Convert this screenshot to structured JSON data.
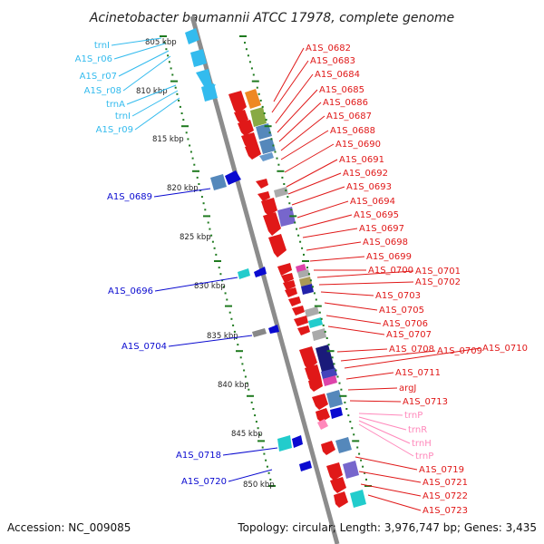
{
  "title": "Acinetobacter baumannii ATCC 17978, complete genome",
  "footer": {
    "accession": "Accession: NC_009085",
    "topology": "Topology: circular; Length: 3,976,747 bp; Genes: 3,435"
  },
  "colors": {
    "backbone": "#8c8c8c",
    "tick": "#1f7a1f",
    "cds_forward": "#e01818",
    "cds_reverse": "#0a0ad0",
    "rna": "#33bbee",
    "trna_light": "#ff88bb"
  },
  "kbp_ticks": [
    "805 kbp",
    "810 kbp",
    "815 kbp",
    "820 kbp",
    "825 kbp",
    "830 kbp",
    "835 kbp",
    "840 kbp",
    "845 kbp",
    "850 kbp"
  ],
  "left_labels": [
    {
      "text": "trnI",
      "color": "#33bbee"
    },
    {
      "text": "A1S_r06",
      "color": "#33bbee"
    },
    {
      "text": "A1S_r07",
      "color": "#33bbee"
    },
    {
      "text": "A1S_r08",
      "color": "#33bbee"
    },
    {
      "text": "trnA",
      "color": "#33bbee"
    },
    {
      "text": "trnI",
      "color": "#33bbee"
    },
    {
      "text": "A1S_r09",
      "color": "#33bbee"
    },
    {
      "text": "A1S_0689",
      "color": "#0a0ad0"
    },
    {
      "text": "A1S_0696",
      "color": "#0a0ad0"
    },
    {
      "text": "A1S_0704",
      "color": "#0a0ad0"
    },
    {
      "text": "A1S_0718",
      "color": "#0a0ad0"
    },
    {
      "text": "A1S_0720",
      "color": "#0a0ad0"
    }
  ],
  "right_labels": [
    {
      "text": "A1S_0682",
      "color": "#e01818"
    },
    {
      "text": "A1S_0683",
      "color": "#e01818"
    },
    {
      "text": "A1S_0684",
      "color": "#e01818"
    },
    {
      "text": "A1S_0685",
      "color": "#e01818"
    },
    {
      "text": "A1S_0686",
      "color": "#e01818"
    },
    {
      "text": "A1S_0687",
      "color": "#e01818"
    },
    {
      "text": "A1S_0688",
      "color": "#e01818"
    },
    {
      "text": "A1S_0690",
      "color": "#e01818"
    },
    {
      "text": "A1S_0691",
      "color": "#e01818"
    },
    {
      "text": "A1S_0692",
      "color": "#e01818"
    },
    {
      "text": "A1S_0693",
      "color": "#e01818"
    },
    {
      "text": "A1S_0694",
      "color": "#e01818"
    },
    {
      "text": "A1S_0695",
      "color": "#e01818"
    },
    {
      "text": "A1S_0697",
      "color": "#e01818"
    },
    {
      "text": "A1S_0698",
      "color": "#e01818"
    },
    {
      "text": "A1S_0699",
      "color": "#e01818"
    },
    {
      "text": "A1S_0700",
      "color": "#e01818"
    },
    {
      "text": "A1S_0701",
      "color": "#e01818"
    },
    {
      "text": "A1S_0702",
      "color": "#e01818"
    },
    {
      "text": "A1S_0703",
      "color": "#e01818"
    },
    {
      "text": "A1S_0705",
      "color": "#e01818"
    },
    {
      "text": "A1S_0706",
      "color": "#e01818"
    },
    {
      "text": "A1S_0707",
      "color": "#e01818"
    },
    {
      "text": "A1S_0708",
      "color": "#e01818"
    },
    {
      "text": "A1S_0709",
      "color": "#e01818"
    },
    {
      "text": "A1S_0710",
      "color": "#e01818"
    },
    {
      "text": "A1S_0711",
      "color": "#e01818"
    },
    {
      "text": "argJ",
      "color": "#e01818"
    },
    {
      "text": "A1S_0713",
      "color": "#e01818"
    },
    {
      "text": "trnP",
      "color": "#ff88bb"
    },
    {
      "text": "trnR",
      "color": "#ff88bb"
    },
    {
      "text": "trnH",
      "color": "#ff88bb"
    },
    {
      "text": "trnP",
      "color": "#ff88bb"
    },
    {
      "text": "A1S_0719",
      "color": "#e01818"
    },
    {
      "text": "A1S_0721",
      "color": "#e01818"
    },
    {
      "text": "A1S_0722",
      "color": "#e01818"
    },
    {
      "text": "A1S_0723",
      "color": "#e01818"
    }
  ]
}
